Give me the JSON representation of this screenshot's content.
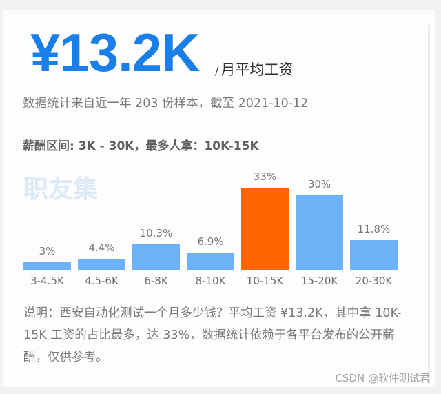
{
  "headline": {
    "value": "¥13.2K",
    "unit_slash": "/",
    "unit": "月平均工资",
    "color": "#1a7fe8"
  },
  "subtitle": "数据统计来自近一年 203 份样本，截至 2021-10-12",
  "range_line": "薪酬区间: 3K - 30K，最多人拿：10K-15K",
  "brand_watermark": {
    "text": "职友集",
    "color": "#dce9f6"
  },
  "description": "说明：西安自动化测试一个月多少钱？平均工资 ¥13.2K，其中拿 10K-15K 工资的占比最多，达 33%，数据统计依赖于各平台发布的公开薪酬，仅供参考。",
  "footer_watermark": "CSDN @软件测试君",
  "colors": {
    "bar_default": "#6fb1f6",
    "bar_highlight": "#ff6600",
    "background": "#f1f1f1",
    "card": "#fdfdfd"
  },
  "chart_data": {
    "type": "bar",
    "title": "薪酬区间: 3K - 30K，最多人拿：10K-15K",
    "xlabel": "",
    "ylabel": "",
    "categories": [
      "3-4.5K",
      "4.5-6K",
      "6-8K",
      "8-10K",
      "10-15K",
      "15-20K",
      "20-30K"
    ],
    "values": [
      3,
      4.4,
      10.3,
      6.9,
      33,
      30,
      11.8
    ],
    "value_labels": [
      "3%",
      "4.4%",
      "10.3%",
      "6.9%",
      "33%",
      "30%",
      "11.8%"
    ],
    "unit": "%",
    "highlight_index": 4,
    "grid": false,
    "legend": null,
    "ylim": [
      0,
      33
    ]
  }
}
